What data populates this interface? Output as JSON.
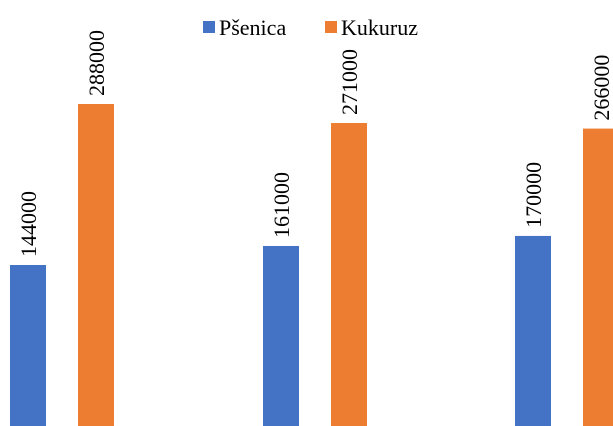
{
  "chart_data": {
    "type": "bar",
    "categories": [
      "",
      "",
      ""
    ],
    "series": [
      {
        "name": "Pšenica",
        "color": "#4472C4",
        "values": [
          144000,
          161000,
          170000
        ]
      },
      {
        "name": "Kukuruz",
        "color": "#ED7D31",
        "values": [
          288000,
          271000,
          266000
        ]
      }
    ],
    "data_labels": [
      [
        "144000",
        "161000",
        "170000"
      ],
      [
        "288000",
        "271000",
        "266000"
      ]
    ],
    "ylim": [
      0,
      340000
    ],
    "grid": false,
    "legend_position": "top",
    "title": "",
    "xlabel": "",
    "ylabel": ""
  }
}
